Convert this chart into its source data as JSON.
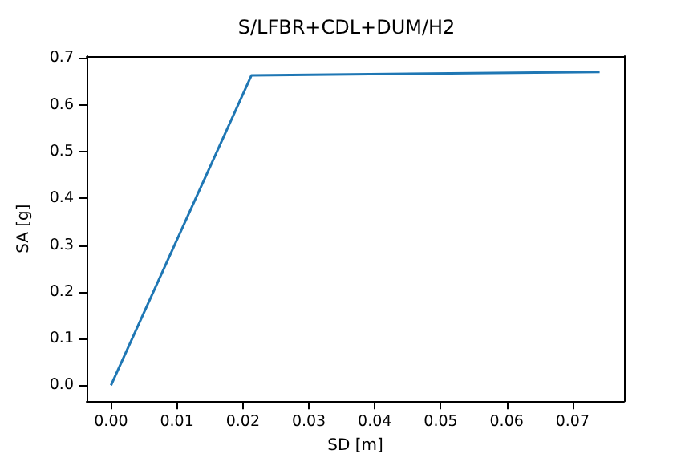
{
  "chart_data": {
    "type": "line",
    "title": "S/LFBR+CDL+DUM/H2",
    "xlabel": "SD [m]",
    "ylabel": "SA [g]",
    "x": [
      0,
      0.0213,
      0.0741
    ],
    "series": [
      {
        "color": "#1f77b4",
        "values": [
          0,
          0.663,
          0.67
        ]
      }
    ],
    "xlim": [
      -0.0037,
      0.0778
    ],
    "xticks": [
      {
        "value": 0,
        "label": "0.00"
      },
      {
        "value": 0.01,
        "label": "0.01"
      },
      {
        "value": 0.02,
        "label": "0.02"
      },
      {
        "value": 0.03,
        "label": "0.03"
      },
      {
        "value": 0.04,
        "label": "0.04"
      },
      {
        "value": 0.05,
        "label": "0.05"
      },
      {
        "value": 0.06,
        "label": "0.06"
      },
      {
        "value": 0.07,
        "label": "0.07"
      }
    ],
    "ylim": [
      -0.034,
      0.704
    ],
    "yticks": [
      {
        "value": 0,
        "label": "0.0"
      },
      {
        "value": 0.1,
        "label": "0.1"
      },
      {
        "value": 0.2,
        "label": "0.2"
      },
      {
        "value": 0.3,
        "label": "0.3"
      },
      {
        "value": 0.4,
        "label": "0.4"
      },
      {
        "value": 0.5,
        "label": "0.5"
      },
      {
        "value": 0.6,
        "label": "0.6"
      },
      {
        "value": 0.7,
        "label": "0.7"
      }
    ],
    "grid": false,
    "marker": "none",
    "line_style": "solid"
  }
}
